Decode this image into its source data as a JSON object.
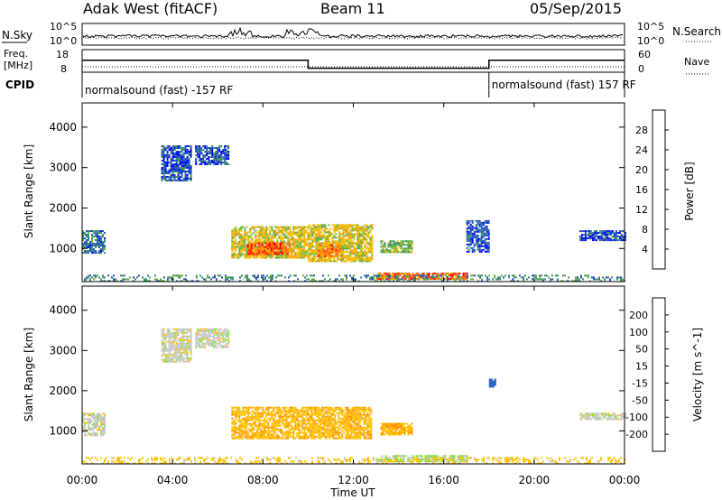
{
  "header": {
    "site": "Adak West (fitACF)",
    "beam": "Beam 11",
    "date": "05/Sep/2015"
  },
  "noise_panel": {
    "left_label": "N.Sky",
    "right_label": "N.Search",
    "left_ticks": [
      "10^5",
      "10^0"
    ],
    "right_ticks": [
      "10^5",
      "10^0"
    ]
  },
  "freq_panel": {
    "left_label_1": "Freq.",
    "left_label_2": "[MHz]",
    "left_ticks": [
      "18",
      "8"
    ],
    "right_label": "Nave",
    "right_ticks": [
      "60",
      "0"
    ],
    "freq_segments": [
      {
        "start_hour": 0,
        "end_hour": 10,
        "mhz": 14
      },
      {
        "start_hour": 10,
        "end_hour": 18,
        "mhz": 10
      },
      {
        "start_hour": 18,
        "end_hour": 24,
        "mhz": 14
      }
    ]
  },
  "cpid_panel": {
    "label": "CPID",
    "segments": [
      {
        "start_hour": 0,
        "text": "normalsound (fast) -157 RF"
      },
      {
        "start_hour": 18,
        "text": "normalsound (fast) 157 RF"
      }
    ]
  },
  "power_panel": {
    "ylabel": "Slant Range [km]",
    "yticks": [
      "4000",
      "3000",
      "2000",
      "1000"
    ],
    "colorbar_label": "Power [dB]",
    "colorbar_ticks": [
      "28",
      "24",
      "20",
      "16",
      "12",
      "8",
      "4"
    ]
  },
  "velocity_panel": {
    "ylabel": "Slant Range [km]",
    "yticks": [
      "4000",
      "3000",
      "2000",
      "1000"
    ],
    "colorbar_label": "Velocity [m s^-1]",
    "colorbar_ticks": [
      "200",
      "100",
      "50",
      "15",
      "-15",
      "-50",
      "-100",
      "-200"
    ]
  },
  "x_axis": {
    "label": "Time UT",
    "ticks": [
      "00:00",
      "04:00",
      "08:00",
      "12:00",
      "16:00",
      "20:00",
      "00:00"
    ]
  },
  "colors": {
    "power": [
      "#0000ff",
      "#2050c0",
      "#3a8a70",
      "#60b040",
      "#f0c000",
      "#ffa000",
      "#ff6010",
      "#ff0000"
    ],
    "velocity": [
      "#ff0000",
      "#ff5000",
      "#ff9000",
      "#ffc000",
      "#c8c8c8",
      "#80e040",
      "#40a060",
      "#2060c0",
      "#0000ff"
    ]
  },
  "chart_data": [
    {
      "type": "heatmap",
      "title": "Beam 11",
      "xlabel": "Time UT",
      "ylabel": "Slant Range [km]",
      "xlim": [
        0,
        24
      ],
      "ylim": [
        180,
        4600
      ],
      "colorbar": {
        "label": "Power [dB]",
        "range": [
          0,
          32
        ]
      },
      "regions": [
        {
          "t": [
            0.0,
            1.0
          ],
          "range_km": [
            900,
            1450
          ],
          "power_db": 8
        },
        {
          "t": [
            3.5,
            4.8
          ],
          "range_km": [
            2700,
            3550
          ],
          "power_db": 6
        },
        {
          "t": [
            5.0,
            6.5
          ],
          "range_km": [
            3100,
            3550
          ],
          "power_db": 6
        },
        {
          "t": [
            6.6,
            10.0
          ],
          "range_km": [
            750,
            1550
          ],
          "power_db": 18
        },
        {
          "t": [
            7.3,
            9.2
          ],
          "range_km": [
            850,
            1150
          ],
          "power_db": 26
        },
        {
          "t": [
            10.0,
            12.8
          ],
          "range_km": [
            700,
            1600
          ],
          "power_db": 18
        },
        {
          "t": [
            10.4,
            11.5
          ],
          "range_km": [
            800,
            1100
          ],
          "power_db": 24
        },
        {
          "t": [
            13.2,
            14.6
          ],
          "range_km": [
            900,
            1200
          ],
          "power_db": 14
        },
        {
          "t": [
            13.0,
            17.0
          ],
          "range_km": [
            250,
            400
          ],
          "power_db": 26
        },
        {
          "t": [
            17.0,
            18.0
          ],
          "range_km": [
            900,
            1700
          ],
          "power_db": 6
        },
        {
          "t": [
            22.0,
            24.0
          ],
          "range_km": [
            1200,
            1450
          ],
          "power_db": 6
        },
        {
          "t": [
            0.0,
            24.0
          ],
          "range_km": [
            200,
            350
          ],
          "power_db": 10
        }
      ]
    },
    {
      "type": "heatmap",
      "title": "",
      "xlabel": "Time UT",
      "ylabel": "Slant Range [km]",
      "xlim": [
        0,
        24
      ],
      "ylim": [
        180,
        4600
      ],
      "colorbar": {
        "label": "Velocity [m s^-1]",
        "range": [
          -200,
          200
        ]
      },
      "regions": [
        {
          "t": [
            0.0,
            1.0
          ],
          "range_km": [
            900,
            1450
          ],
          "velocity_ms": 0
        },
        {
          "t": [
            3.5,
            4.8
          ],
          "range_km": [
            2700,
            3550
          ],
          "velocity_ms": 0
        },
        {
          "t": [
            5.0,
            6.5
          ],
          "range_km": [
            3100,
            3550
          ],
          "velocity_ms": 0
        },
        {
          "t": [
            6.6,
            12.8
          ],
          "range_km": [
            800,
            1600
          ],
          "velocity_ms": -40
        },
        {
          "t": [
            13.2,
            14.6
          ],
          "range_km": [
            900,
            1200
          ],
          "velocity_ms": -40
        },
        {
          "t": [
            13.0,
            17.0
          ],
          "range_km": [
            250,
            400
          ],
          "velocity_ms": 20
        },
        {
          "t": [
            18.0,
            18.3
          ],
          "range_km": [
            2100,
            2300
          ],
          "velocity_ms": 150
        },
        {
          "t": [
            22.0,
            24.0
          ],
          "range_km": [
            1300,
            1450
          ],
          "velocity_ms": 0
        },
        {
          "t": [
            0.0,
            24.0
          ],
          "range_km": [
            200,
            350
          ],
          "velocity_ms": -30
        }
      ]
    }
  ]
}
